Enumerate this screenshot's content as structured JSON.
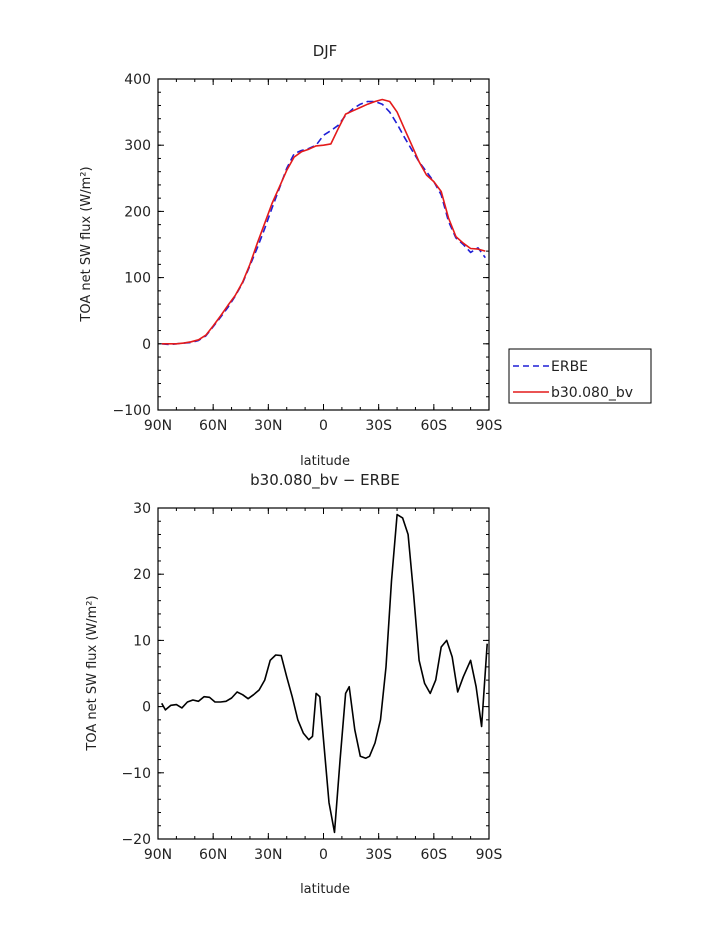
{
  "chart_data": [
    {
      "type": "line",
      "title": "DJF",
      "xlabel": "latitude",
      "ylabel": "TOA net SW flux (W/m²)",
      "x_tick_labels": [
        "90N",
        "60N",
        "30N",
        "0",
        "30S",
        "60S",
        "90S"
      ],
      "x_ticks": [
        -90,
        -60,
        -30,
        0,
        30,
        60,
        90
      ],
      "xlim": [
        -90,
        90
      ],
      "y_ticks": [
        -100,
        0,
        100,
        200,
        300,
        400
      ],
      "y_tick_labels": [
        "−100",
        "0",
        "100",
        "200",
        "300",
        "400"
      ],
      "ylim": [
        -100,
        400
      ],
      "legend_position": "outside-right",
      "series": [
        {
          "name": "ERBE",
          "color": "#1f1fd6",
          "dash": "dashed",
          "x": [
            -88,
            -84,
            -80,
            -76,
            -72,
            -68,
            -64,
            -60,
            -56,
            -52,
            -48,
            -44,
            -40,
            -36,
            -32,
            -28,
            -24,
            -20,
            -16,
            -12,
            -8,
            -4,
            0,
            4,
            8,
            12,
            16,
            20,
            24,
            28,
            32,
            36,
            40,
            44,
            48,
            52,
            56,
            60,
            64,
            68,
            72,
            76,
            80,
            84,
            88
          ],
          "values": [
            0,
            -1,
            0,
            1,
            2,
            5,
            12,
            26,
            40,
            55,
            72,
            92,
            118,
            145,
            174,
            205,
            235,
            265,
            287,
            292,
            295,
            300,
            315,
            322,
            330,
            345,
            355,
            362,
            366,
            366,
            362,
            350,
            332,
            312,
            293,
            275,
            260,
            245,
            225,
            185,
            160,
            150,
            138,
            145,
            130
          ]
        },
        {
          "name": "b30.080_bv",
          "color": "#e41a1a",
          "dash": "solid",
          "x": [
            -88,
            -84,
            -80,
            -76,
            -72,
            -68,
            -64,
            -60,
            -56,
            -52,
            -48,
            -44,
            -40,
            -36,
            -32,
            -28,
            -24,
            -20,
            -16,
            -12,
            -8,
            -4,
            0,
            4,
            8,
            12,
            16,
            20,
            24,
            28,
            32,
            36,
            40,
            44,
            48,
            52,
            56,
            60,
            64,
            68,
            72,
            76,
            80,
            84,
            88
          ],
          "values": [
            0,
            0,
            0,
            1,
            3,
            6,
            13,
            27,
            42,
            58,
            73,
            93,
            120,
            152,
            182,
            212,
            237,
            262,
            282,
            290,
            294,
            299,
            300,
            302,
            325,
            347,
            352,
            357,
            362,
            366,
            369,
            366,
            350,
            325,
            300,
            275,
            255,
            245,
            230,
            190,
            162,
            152,
            144,
            143,
            140
          ]
        }
      ]
    },
    {
      "type": "line",
      "title": "b30.080_bv − ERBE",
      "xlabel": "latitude",
      "ylabel": "TOA net SW flux (W/m²)",
      "x_tick_labels": [
        "90N",
        "60N",
        "30N",
        "0",
        "30S",
        "60S",
        "90S"
      ],
      "x_ticks": [
        -90,
        -60,
        -30,
        0,
        30,
        60,
        90
      ],
      "xlim": [
        -90,
        90
      ],
      "y_ticks": [
        -20,
        -10,
        0,
        10,
        20,
        30
      ],
      "y_tick_labels": [
        "−20",
        "−10",
        "0",
        "10",
        "20",
        "30"
      ],
      "ylim": [
        -20,
        30
      ],
      "series": [
        {
          "color": "#000000",
          "x": [
            -88,
            -86,
            -83,
            -80,
            -77,
            -74,
            -71,
            -68,
            -65,
            -62,
            -59,
            -56,
            -53,
            -50,
            -47,
            -44,
            -41,
            -38,
            -35,
            -32,
            -29,
            -26,
            -23,
            -20,
            -17,
            -14,
            -11,
            -8,
            -6,
            -4,
            -2,
            0,
            3,
            6,
            9,
            12,
            14,
            17,
            20,
            23,
            25,
            28,
            31,
            34,
            37,
            40,
            43,
            46,
            49,
            52,
            55,
            58,
            61,
            64,
            67,
            70,
            73,
            76,
            80,
            83,
            86,
            89
          ],
          "values": [
            0.5,
            -0.5,
            0.2,
            0.3,
            -0.2,
            0.7,
            1.0,
            0.8,
            1.5,
            1.4,
            0.7,
            0.7,
            0.8,
            1.3,
            2.2,
            1.8,
            1.2,
            1.8,
            2.5,
            4,
            7,
            7.8,
            7.7,
            4.5,
            1.5,
            -2,
            -4,
            -5,
            -4.5,
            2,
            1.5,
            -5,
            -14.5,
            -19,
            -8,
            2,
            3,
            -3.5,
            -7.5,
            -7.8,
            -7.5,
            -5.5,
            -2,
            6,
            19,
            29,
            28.5,
            26,
            17,
            7,
            3.5,
            2,
            4,
            9,
            10,
            7.5,
            2.2,
            4.5,
            7,
            3,
            -3,
            9.5
          ]
        }
      ]
    }
  ]
}
